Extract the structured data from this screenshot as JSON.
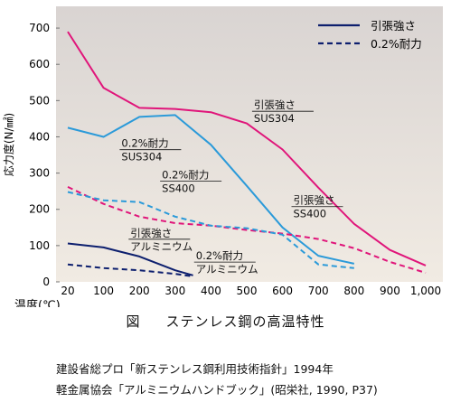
{
  "chart_data": {
    "type": "line",
    "ylabel": "応力度(N/㎟)",
    "xlabel": "温度(℃)",
    "x": [
      20,
      100,
      200,
      300,
      400,
      500,
      600,
      700,
      800,
      900,
      1000
    ],
    "x_tick_labels": [
      "20",
      "100",
      "200",
      "300",
      "400",
      "500",
      "600",
      "700",
      "800",
      "900",
      "1,000"
    ],
    "yticks": [
      0,
      100,
      200,
      300,
      400,
      500,
      600,
      700
    ],
    "ylim": [
      0,
      760
    ],
    "grid": false,
    "legend_position": "top-right",
    "legend": [
      {
        "label": "引張強さ",
        "style": "solid",
        "color": "#0d1f6e"
      },
      {
        "label": "0.2%耐力",
        "style": "dashed",
        "color": "#0d1f6e"
      }
    ],
    "series": [
      {
        "name": "引張強さ SUS304",
        "color": "#e0157a",
        "style": "solid",
        "x": [
          20,
          100,
          200,
          300,
          400,
          500,
          600,
          700,
          800,
          900,
          1000
        ],
        "y": [
          690,
          535,
          480,
          477,
          468,
          437,
          365,
          260,
          160,
          88,
          45
        ]
      },
      {
        "name": "引張強さ SS400",
        "color": "#2b9ad9",
        "style": "solid",
        "x": [
          20,
          100,
          200,
          300,
          400,
          500,
          600,
          700,
          800
        ],
        "y": [
          425,
          400,
          455,
          460,
          378,
          265,
          150,
          72,
          50
        ]
      },
      {
        "name": "0.2%耐力 SUS304",
        "color": "#e0157a",
        "style": "dashed",
        "x": [
          20,
          100,
          200,
          300,
          400,
          500,
          600,
          700,
          800,
          900,
          1000
        ],
        "y": [
          262,
          215,
          180,
          162,
          155,
          143,
          133,
          118,
          93,
          55,
          25
        ]
      },
      {
        "name": "0.2%耐力 SS400",
        "color": "#2b9ad9",
        "style": "dashed",
        "x": [
          20,
          100,
          200,
          300,
          400,
          500,
          600,
          700,
          800
        ],
        "y": [
          248,
          225,
          220,
          180,
          155,
          148,
          130,
          48,
          38
        ]
      },
      {
        "name": "引張強さ アルミニウム",
        "color": "#0d1f6e",
        "style": "solid",
        "x": [
          20,
          100,
          200,
          300,
          350
        ],
        "y": [
          106,
          95,
          70,
          32,
          18
        ]
      },
      {
        "name": "0.2%耐力 アルミニウム",
        "color": "#0d1f6e",
        "style": "dashed",
        "x": [
          20,
          100,
          200,
          300,
          350
        ],
        "y": [
          48,
          38,
          32,
          22,
          15
        ]
      }
    ],
    "annotations": [
      {
        "lines": [
          "引張強さ",
          "SUS304"
        ],
        "ax": 520,
        "ay": 478
      },
      {
        "lines": [
          "0.2%耐力",
          "SUS304"
        ],
        "ax": 150,
        "ay": 372
      },
      {
        "lines": [
          "0.2%耐力",
          "SS400"
        ],
        "ax": 263,
        "ay": 285
      },
      {
        "lines": [
          "引張強さ",
          "SS400"
        ],
        "ax": 630,
        "ay": 215
      },
      {
        "lines": [
          "引張強さ",
          "アルミニウム"
        ],
        "ax": 175,
        "ay": 125
      },
      {
        "lines": [
          "0.2%耐力",
          "アルミニウム"
        ],
        "ax": 358,
        "ay": 62
      }
    ]
  },
  "caption": {
    "figure": "図",
    "title": "ステンレス鋼の高温特性"
  },
  "sources": [
    "建設省総プロ「新ステンレス鋼利用技術指針」1994年",
    "軽金属協会「アルミニウムハンドブック」(昭栄社, 1990, P37)"
  ]
}
